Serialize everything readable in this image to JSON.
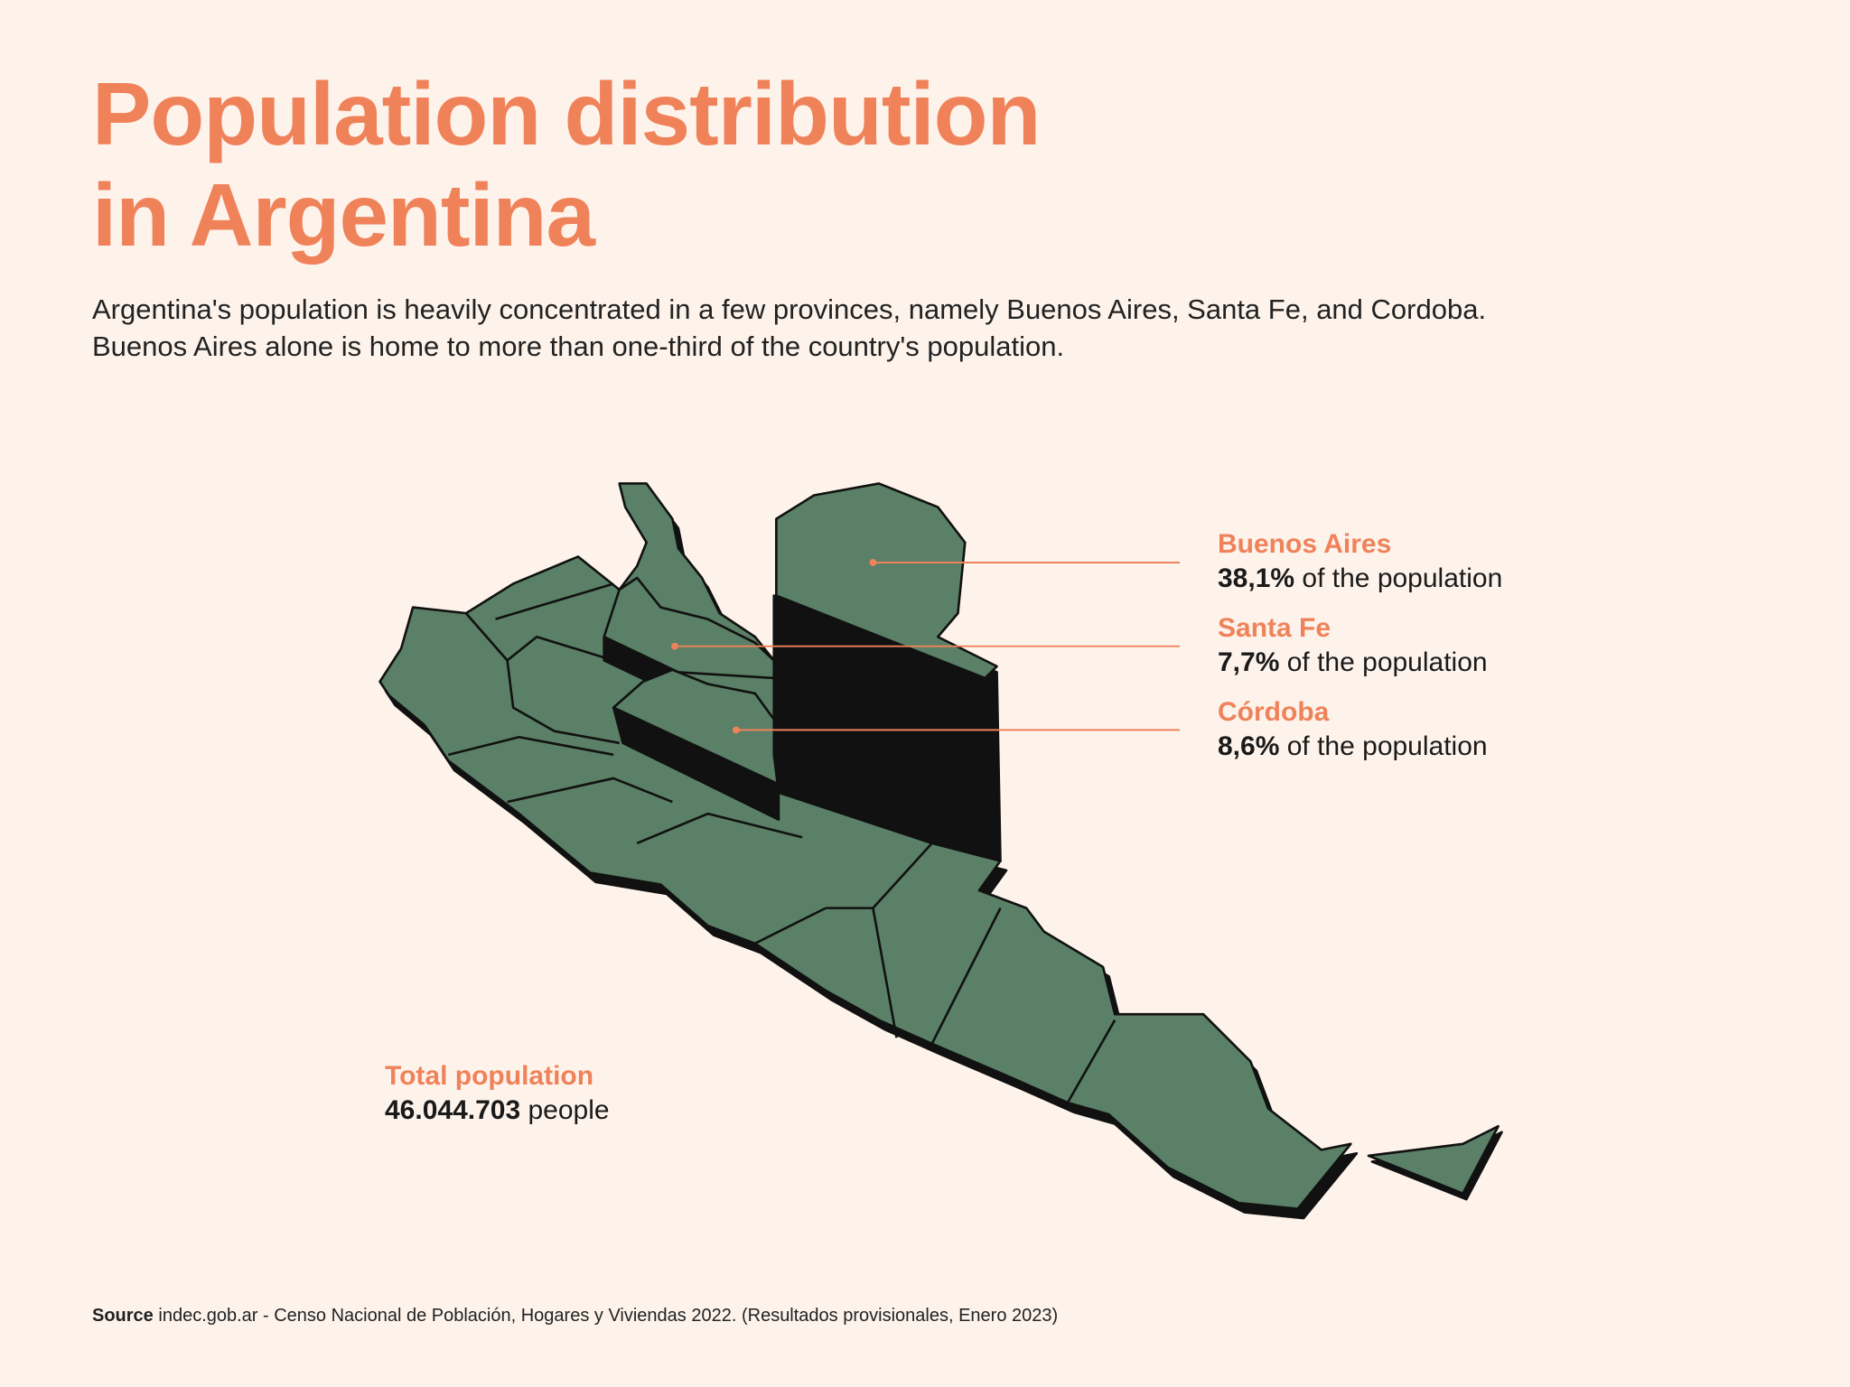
{
  "title": {
    "line1": "Population distribution",
    "line2": "in Argentina"
  },
  "subtitle": {
    "line1": "Argentina's population is heavily concentrated in a few provinces, namely Buenos Aires, Santa Fe, and Cordoba.",
    "line2": "Buenos Aires alone is home to more than one-third of the country's population."
  },
  "colors": {
    "background": "#fdf3eb",
    "accent": "#f0825a",
    "province_fill": "#5a8067",
    "extrusion": "#111111"
  },
  "callouts": [
    {
      "name": "Buenos Aires",
      "value": "38,1%",
      "suffix": "of the population"
    },
    {
      "name": "Santa Fe",
      "value": "7,7%",
      "suffix": "of the population"
    },
    {
      "name": "Córdoba",
      "value": "8,6%",
      "suffix": "of the population"
    }
  ],
  "chart_data": {
    "type": "3d-choropleth-map",
    "region": "Argentina",
    "highlighted": [
      {
        "province": "Buenos Aires",
        "population_share_pct": 38.1
      },
      {
        "province": "Santa Fe",
        "population_share_pct": 7.7
      },
      {
        "province": "Córdoba",
        "population_share_pct": 8.6
      }
    ],
    "total_population": 46044703
  },
  "total": {
    "label": "Total population",
    "value": "46.044.703",
    "suffix": "people"
  },
  "source": {
    "label": "Source",
    "text": "indec.gob.ar - Censo Nacional de Población, Hogares y Viviendas 2022. (Resultados provisionales, Enero 2023)"
  }
}
